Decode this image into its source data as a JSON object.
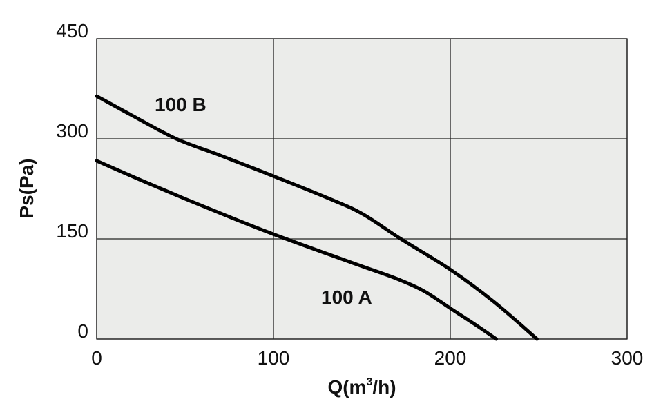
{
  "chart_data": {
    "type": "line",
    "title": "",
    "xlabel": "Q(m³/h)",
    "xlabel_main": "Q(m",
    "xlabel_sup": "3",
    "xlabel_tail": "/h)",
    "ylabel": "Ps(Pa)",
    "xlim": [
      0,
      300
    ],
    "ylim": [
      0,
      450
    ],
    "xticks": [
      0,
      100,
      200,
      300
    ],
    "yticks": [
      0,
      150,
      300,
      450
    ],
    "grid": true,
    "colors": {
      "plot_bg": "#ebecea",
      "grid": "#222222",
      "line": "#000000"
    },
    "series": [
      {
        "name": "100 B",
        "x": [
          0,
          20,
          45,
          70,
          100,
          130,
          150,
          172,
          200,
          225,
          249
        ],
        "y": [
          364,
          335,
          300,
          275,
          244,
          212,
          188,
          150,
          104,
          55,
          0
        ]
      },
      {
        "name": "100 A",
        "x": [
          0,
          25,
          50,
          75,
          100,
          130,
          150,
          170,
          185,
          200,
          215,
          226
        ],
        "y": [
          267,
          238,
          210,
          183,
          157,
          128,
          109,
          90,
          72,
          46,
          20,
          0
        ]
      }
    ]
  }
}
